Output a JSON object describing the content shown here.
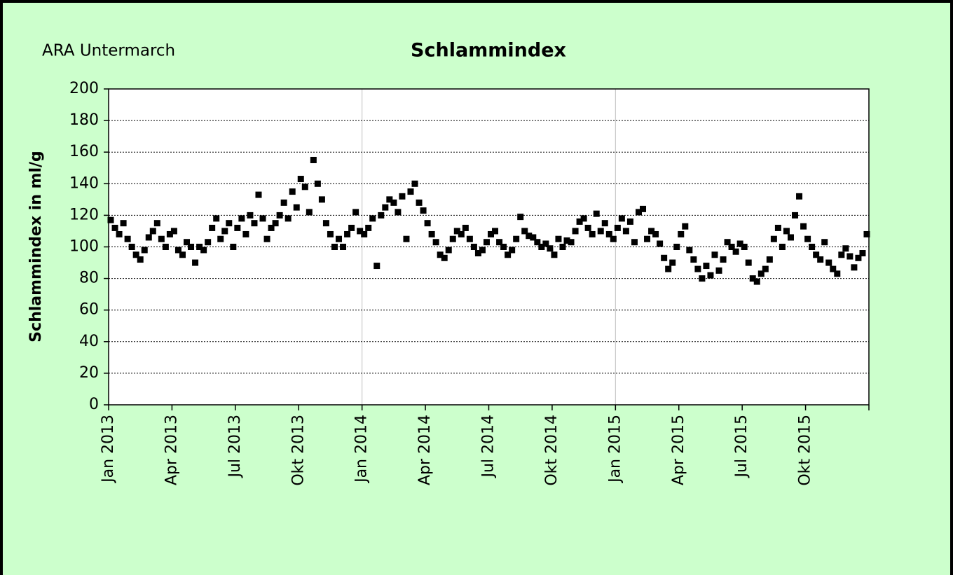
{
  "chart_data": {
    "type": "scatter",
    "title": "Schlammindex",
    "subtitle": "ARA Untermarch",
    "y_label": "Schlammindex in ml/g",
    "x": [
      "2013-01",
      "2013-01",
      "2013-01",
      "2013-01",
      "2013-01",
      "2013-02",
      "2013-02",
      "2013-02",
      "2013-02",
      "2013-02",
      "2013-03",
      "2013-03",
      "2013-03",
      "2013-03",
      "2013-03",
      "2013-04",
      "2013-04",
      "2013-04",
      "2013-04",
      "2013-04",
      "2013-05",
      "2013-05",
      "2013-05",
      "2013-05",
      "2013-05",
      "2013-06",
      "2013-06",
      "2013-06",
      "2013-06",
      "2013-06",
      "2013-07",
      "2013-07",
      "2013-07",
      "2013-07",
      "2013-07",
      "2013-08",
      "2013-08",
      "2013-08",
      "2013-08",
      "2013-08",
      "2013-09",
      "2013-09",
      "2013-09",
      "2013-09",
      "2013-09",
      "2013-10",
      "2013-10",
      "2013-10",
      "2013-10",
      "2013-10",
      "2013-11",
      "2013-11",
      "2013-11",
      "2013-11",
      "2013-11",
      "2013-12",
      "2013-12",
      "2013-12",
      "2013-12",
      "2013-12",
      "2014-01",
      "2014-01",
      "2014-01",
      "2014-01",
      "2014-01",
      "2014-02",
      "2014-02",
      "2014-02",
      "2014-02",
      "2014-02",
      "2014-03",
      "2014-03",
      "2014-03",
      "2014-03",
      "2014-03",
      "2014-04",
      "2014-04",
      "2014-04",
      "2014-04",
      "2014-04",
      "2014-05",
      "2014-05",
      "2014-05",
      "2014-05",
      "2014-05",
      "2014-06",
      "2014-06",
      "2014-06",
      "2014-06",
      "2014-06",
      "2014-07",
      "2014-07",
      "2014-07",
      "2014-07",
      "2014-07",
      "2014-08",
      "2014-08",
      "2014-08",
      "2014-08",
      "2014-08",
      "2014-09",
      "2014-09",
      "2014-09",
      "2014-09",
      "2014-09",
      "2014-10",
      "2014-10",
      "2014-10",
      "2014-10",
      "2014-10",
      "2014-11",
      "2014-11",
      "2014-11",
      "2014-11",
      "2014-11",
      "2014-12",
      "2014-12",
      "2014-12",
      "2014-12",
      "2014-12",
      "2015-01",
      "2015-01",
      "2015-01",
      "2015-01",
      "2015-01",
      "2015-02",
      "2015-02",
      "2015-02",
      "2015-02",
      "2015-02",
      "2015-03",
      "2015-03",
      "2015-03",
      "2015-03",
      "2015-03",
      "2015-04",
      "2015-04",
      "2015-04",
      "2015-04",
      "2015-04",
      "2015-05",
      "2015-05",
      "2015-05",
      "2015-05",
      "2015-05",
      "2015-06",
      "2015-06",
      "2015-06",
      "2015-06",
      "2015-06",
      "2015-07",
      "2015-07",
      "2015-07",
      "2015-07",
      "2015-07",
      "2015-08",
      "2015-08",
      "2015-08",
      "2015-08",
      "2015-08",
      "2015-09",
      "2015-09",
      "2015-09",
      "2015-09",
      "2015-09",
      "2015-10",
      "2015-10",
      "2015-10",
      "2015-10",
      "2015-10",
      "2015-11",
      "2015-11",
      "2015-11",
      "2015-11",
      "2015-11",
      "2015-12",
      "2015-12",
      "2015-12",
      "2015-12",
      "2015-12"
    ],
    "series": [
      {
        "name": "Schlammindex",
        "color": "#000000",
        "values": [
          117,
          112,
          108,
          115,
          105,
          100,
          95,
          92,
          98,
          106,
          110,
          115,
          105,
          100,
          108,
          110,
          98,
          95,
          103,
          100,
          90,
          100,
          98,
          103,
          112,
          118,
          105,
          110,
          115,
          100,
          112,
          118,
          108,
          120,
          115,
          133,
          118,
          105,
          112,
          115,
          120,
          128,
          118,
          135,
          125,
          143,
          138,
          122,
          155,
          140,
          130,
          115,
          108,
          100,
          105,
          100,
          108,
          112,
          122,
          110,
          108,
          112,
          118,
          88,
          120,
          125,
          130,
          128,
          122,
          132,
          105,
          135,
          140,
          128,
          123,
          115,
          108,
          103,
          95,
          93,
          98,
          105,
          110,
          108,
          112,
          105,
          100,
          96,
          98,
          103,
          108,
          110,
          103,
          100,
          95,
          98,
          105,
          119,
          110,
          107,
          106,
          103,
          100,
          102,
          99,
          95,
          105,
          100,
          104,
          103,
          110,
          116,
          118,
          112,
          108,
          121,
          110,
          115,
          108,
          105,
          112,
          118,
          110,
          116,
          103,
          122,
          124,
          105,
          110,
          108,
          102,
          93,
          86,
          90,
          100,
          108,
          113,
          98,
          92,
          86,
          80,
          88,
          82,
          95,
          85,
          92,
          103,
          100,
          97,
          102,
          100,
          90,
          80,
          78,
          83,
          86,
          92,
          105,
          112,
          100,
          110,
          106,
          120,
          132,
          113,
          105,
          100,
          95,
          92,
          103,
          90,
          86,
          83,
          95,
          99,
          94,
          87,
          93,
          96,
          108
        ]
      }
    ],
    "xlim": [
      "2013-01",
      "2016-01"
    ],
    "xticks": [
      {
        "value": "2013-01",
        "label": "Jan 2013"
      },
      {
        "value": "2013-04",
        "label": "Apr 2013"
      },
      {
        "value": "2013-07",
        "label": "Jul 2013"
      },
      {
        "value": "2013-10",
        "label": "Okt 2013"
      },
      {
        "value": "2014-01",
        "label": "Jan 2014"
      },
      {
        "value": "2014-04",
        "label": "Apr 2014"
      },
      {
        "value": "2014-07",
        "label": "Jul 2014"
      },
      {
        "value": "2014-10",
        "label": "Okt 2014"
      },
      {
        "value": "2015-01",
        "label": "Jan 2015"
      },
      {
        "value": "2015-04",
        "label": "Apr 2015"
      },
      {
        "value": "2015-07",
        "label": "Jul 2015"
      },
      {
        "value": "2015-10",
        "label": "Okt 2015"
      }
    ],
    "xgrid": [
      "2014-01",
      "2015-01"
    ],
    "ylim": [
      0,
      200
    ],
    "yticks": [
      0,
      20,
      40,
      60,
      80,
      100,
      120,
      140,
      160,
      180,
      200
    ],
    "grid": true
  }
}
